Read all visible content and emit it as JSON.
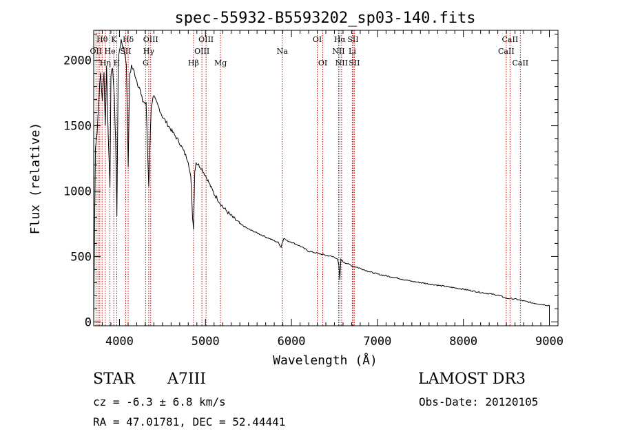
{
  "chart_data": {
    "type": "line",
    "title": "spec-55932-B5593202_sp03-140.fits",
    "xlabel": "Wavelength (Å)",
    "ylabel": "Flux (relative)",
    "xlim": [
      3700,
      9100
    ],
    "ylim": [
      -30,
      2230
    ],
    "xticks": [
      4000,
      5000,
      6000,
      7000,
      8000,
      9000
    ],
    "yticks": [
      0,
      500,
      1000,
      1500,
      2000
    ],
    "grid": false,
    "series": [
      {
        "name": "spectrum",
        "x": [
          3700,
          3720,
          3740,
          3760,
          3780,
          3800,
          3820,
          3835,
          3850,
          3870,
          3889,
          3900,
          3920,
          3940,
          3955,
          3970,
          3985,
          4000,
          4020,
          4040,
          4060,
          4080,
          4101,
          4120,
          4140,
          4160,
          4180,
          4200,
          4230,
          4260,
          4290,
          4310,
          4340,
          4370,
          4400,
          4450,
          4500,
          4550,
          4600,
          4650,
          4700,
          4750,
          4800,
          4830,
          4850,
          4861,
          4875,
          4890,
          4920,
          4950,
          5000,
          5050,
          5100,
          5150,
          5200,
          5300,
          5400,
          5500,
          5600,
          5700,
          5800,
          5850,
          5880,
          5890,
          5896,
          5910,
          5950,
          6000,
          6100,
          6200,
          6300,
          6400,
          6500,
          6530,
          6550,
          6563,
          6575,
          6600,
          6650,
          6700,
          6800,
          6900,
          7000,
          7200,
          7400,
          7600,
          7800,
          8000,
          8200,
          8400,
          8500,
          8600,
          8700,
          8800,
          8900,
          9000
        ],
        "y": [
          20,
          1350,
          1450,
          1700,
          1900,
          1700,
          1900,
          1500,
          1950,
          1400,
          1050,
          1850,
          1960,
          1700,
          1400,
          800,
          1950,
          2080,
          2160,
          2110,
          2060,
          1990,
          1200,
          1900,
          1960,
          1920,
          1900,
          1850,
          1800,
          1700,
          1680,
          1660,
          1050,
          1670,
          1720,
          1650,
          1570,
          1520,
          1470,
          1420,
          1370,
          1300,
          1230,
          1100,
          800,
          720,
          1150,
          1220,
          1200,
          1180,
          1120,
          1050,
          980,
          930,
          880,
          810,
          750,
          710,
          680,
          650,
          620,
          605,
          570,
          600,
          610,
          640,
          620,
          610,
          580,
          540,
          525,
          510,
          495,
          485,
          440,
          320,
          480,
          460,
          445,
          430,
          410,
          385,
          365,
          340,
          310,
          290,
          270,
          250,
          225,
          205,
          180,
          175,
          160,
          145,
          135,
          125
        ]
      }
    ],
    "line_labels": [
      {
        "text": "Hθ",
        "wl": 3798,
        "row": 0
      },
      {
        "text": "OII",
        "wl": 3727,
        "row": 1
      },
      {
        "text": "Hη",
        "wl": 3835,
        "row": 2
      },
      {
        "text": "K",
        "wl": 3934,
        "row": 0
      },
      {
        "text": "He",
        "wl": 3889,
        "row": 1
      },
      {
        "text": "H",
        "wl": 3968,
        "row": 2
      },
      {
        "text": "Hδ",
        "wl": 4101,
        "row": 0
      },
      {
        "text": "SII",
        "wl": 4072,
        "row": 1
      },
      {
        "text": "OIII",
        "wl": 4363,
        "row": 0
      },
      {
        "text": "Hγ",
        "wl": 4340,
        "row": 1
      },
      {
        "text": "G",
        "wl": 4304,
        "row": 2
      },
      {
        "text": "OIII",
        "wl": 5007,
        "row": 0
      },
      {
        "text": "OIII",
        "wl": 4959,
        "row": 1
      },
      {
        "text": "Hβ",
        "wl": 4861,
        "row": 2
      },
      {
        "text": "Mg",
        "wl": 5175,
        "row": 2
      },
      {
        "text": "Na",
        "wl": 5893,
        "row": 1
      },
      {
        "text": "OI",
        "wl": 6300,
        "row": 0
      },
      {
        "text": "OI",
        "wl": 6364,
        "row": 2
      },
      {
        "text": "Hα",
        "wl": 6563,
        "row": 0
      },
      {
        "text": "NII",
        "wl": 6548,
        "row": 1
      },
      {
        "text": "NII",
        "wl": 6583,
        "row": 2
      },
      {
        "text": "SII",
        "wl": 6716,
        "row": 0
      },
      {
        "text": "Li",
        "wl": 6708,
        "row": 1
      },
      {
        "text": "SII",
        "wl": 6731,
        "row": 2
      },
      {
        "text": "CaII",
        "wl": 8542,
        "row": 0
      },
      {
        "text": "CaII",
        "wl": 8498,
        "row": 1
      },
      {
        "text": "CaII",
        "wl": 8662,
        "row": 2
      }
    ],
    "line_wavelengths": [
      3727,
      3750,
      3771,
      3798,
      3835,
      3889,
      3934,
      3968,
      4072,
      4101,
      4304,
      4340,
      4363,
      4861,
      4959,
      5007,
      5175,
      5893,
      6300,
      6364,
      6548,
      6563,
      6583,
      6708,
      6716,
      6731,
      8498,
      8542,
      8662
    ]
  },
  "info": {
    "object_class": "STAR",
    "subclass": "A7III",
    "survey": "LAMOST DR3",
    "cz": "cz = -6.3 ± 6.8 km/s",
    "obs_date": "Obs-Date: 20120105",
    "radec": "RA =  47.01781, DEC =  52.44441"
  }
}
